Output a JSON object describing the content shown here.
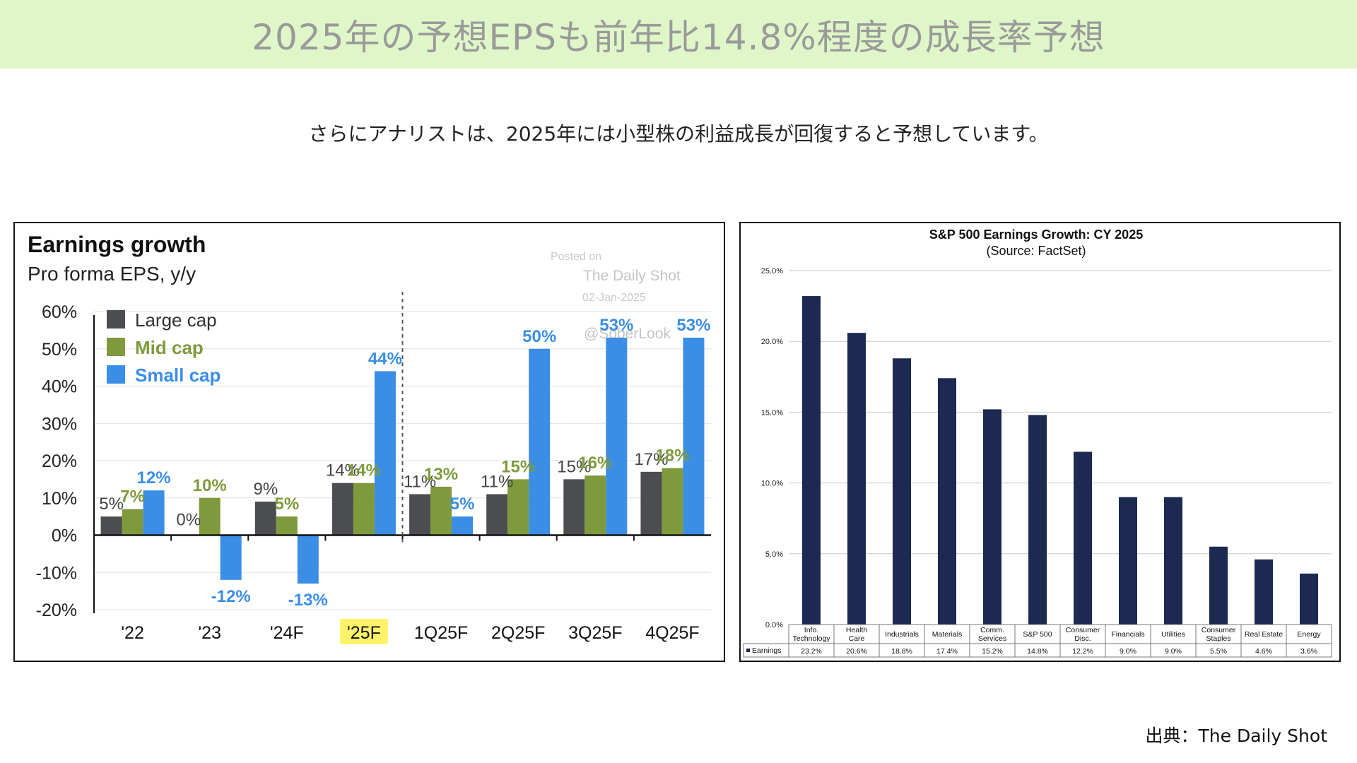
{
  "page": {
    "title": "2025年の予想EPSも前年比14.8%程度の成長率予想",
    "subtitle": "さらにアナリストは、2025年には小型株の利益成長が回復すると予想しています。",
    "source": "出典：The Daily Shot"
  },
  "colors": {
    "banner_bg": "#dff7c8",
    "large_cap": "#4b4d50",
    "mid_cap": "#7f9a3c",
    "small_cap": "#3b8ee6",
    "sp_bar": "#1c2a52",
    "highlight": "#fff36b"
  },
  "chart_data": [
    {
      "type": "bar",
      "title": "Earnings growth",
      "subtitle": "Pro forma EPS, y/y",
      "watermark": [
        "Posted on",
        "The Daily Shot",
        "02-Jan-2025",
        "@SoberLook"
      ],
      "categories": [
        "'22",
        "'23",
        "'24F",
        "'25F",
        "1Q25F",
        "2Q25F",
        "3Q25F",
        "4Q25F"
      ],
      "highlighted_category": "'25F",
      "ylim": [
        -20,
        60
      ],
      "yticks": [
        -20,
        -10,
        0,
        10,
        20,
        30,
        40,
        50,
        60
      ],
      "ytick_labels": [
        "-20%",
        "-10%",
        "0%",
        "10%",
        "20%",
        "30%",
        "40%",
        "50%",
        "60%"
      ],
      "legend_position": "top-left",
      "series": [
        {
          "name": "Large cap",
          "color": "#4b4d50",
          "values": [
            5,
            0,
            9,
            14,
            11,
            11,
            15,
            17
          ],
          "labels": [
            "5%",
            "0%",
            "9%",
            "14%",
            "11%",
            "11%",
            "15%",
            "17%"
          ]
        },
        {
          "name": "Mid cap",
          "color": "#7f9a3c",
          "values": [
            7,
            10,
            5,
            14,
            13,
            15,
            16,
            18
          ],
          "labels": [
            "7%",
            "10%",
            "5%",
            "14%",
            "13%",
            "15%",
            "16%",
            "18%"
          ]
        },
        {
          "name": "Small cap",
          "color": "#3b8ee6",
          "values": [
            12,
            -12,
            -13,
            44,
            5,
            50,
            53,
            53
          ],
          "labels": [
            "12%",
            "-12%",
            "-13%",
            "44%",
            "5%",
            "50%",
            "53%",
            "53%"
          ]
        }
      ]
    },
    {
      "type": "bar",
      "title": "S&P 500 Earnings Growth: CY 2025",
      "subtitle": "(Source: FactSet)",
      "categories": [
        [
          "Info.",
          "Technology"
        ],
        [
          "Health",
          "Care"
        ],
        [
          "Industrials"
        ],
        [
          "Materials"
        ],
        [
          "Comm.",
          "Services"
        ],
        [
          "S&P 500"
        ],
        [
          "Consumer",
          "Disc."
        ],
        [
          "Financials"
        ],
        [
          "Utilities"
        ],
        [
          "Consumer",
          "Staples"
        ],
        [
          "Real Estate"
        ],
        [
          "Energy"
        ]
      ],
      "series": [
        {
          "name": "Earnings",
          "color": "#1c2a52",
          "values": [
            23.2,
            20.6,
            18.8,
            17.4,
            15.2,
            14.8,
            12.2,
            9.0,
            9.0,
            5.5,
            4.6,
            3.6
          ],
          "labels": [
            "23.2%",
            "20.6%",
            "18.8%",
            "17.4%",
            "15.2%",
            "14.8%",
            "12.2%",
            "9.0%",
            "9.0%",
            "5.5%",
            "4.6%",
            "3.6%"
          ]
        }
      ],
      "ylim": [
        0,
        25
      ],
      "yticks": [
        0,
        5,
        10,
        15,
        20,
        25
      ],
      "ytick_labels": [
        "0.0%",
        "5.0%",
        "10.0%",
        "15.0%",
        "20.0%",
        "25.0%"
      ],
      "grid": true,
      "data_table": true
    }
  ]
}
